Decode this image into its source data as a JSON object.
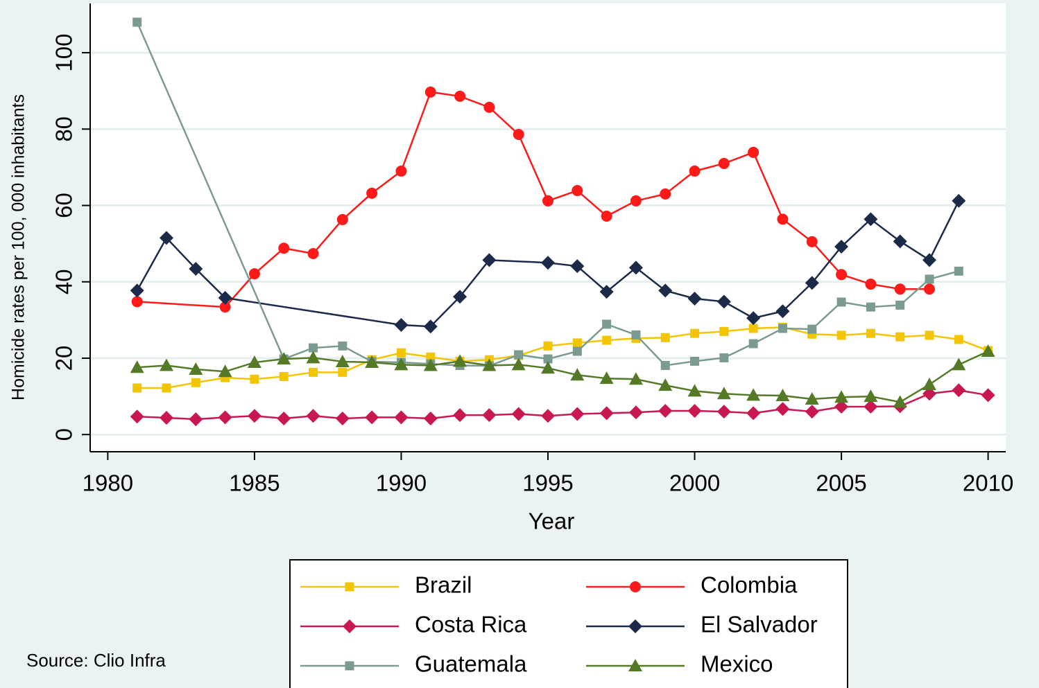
{
  "chart_data": {
    "type": "line",
    "y_label": "Homicide rates per 100, 000 inhabitants",
    "x_label": "Year",
    "source": "Source: Clio Infra",
    "xlim": [
      1979.4,
      2010.6
    ],
    "ylim": [
      -4.5,
      112.9
    ],
    "xticks": [
      1980,
      1985,
      1990,
      1995,
      2000,
      2005,
      2010
    ],
    "yticks": [
      0,
      20,
      40,
      60,
      80,
      100
    ],
    "grid": true,
    "series": [
      {
        "name": "Brazil",
        "color": "#f2c500",
        "marker": "square",
        "x": [
          1981,
          1982,
          1983,
          1984,
          1985,
          1986,
          1987,
          1988,
          1989,
          1990,
          1991,
          1992,
          1993,
          1994,
          1995,
          1996,
          1997,
          1998,
          1999,
          2000,
          2001,
          2002,
          2003,
          2004,
          2005,
          2006,
          2007,
          2008,
          2009,
          2010
        ],
        "values": [
          12.2,
          12.2,
          13.6,
          14.9,
          14.5,
          15.2,
          16.3,
          16.3,
          19.6,
          21.4,
          20.3,
          19.2,
          19.6,
          20.7,
          23.2,
          24.0,
          24.7,
          25.2,
          25.4,
          26.5,
          27.0,
          27.8,
          28.1,
          26.3,
          26.0,
          26.5,
          25.6,
          26.0,
          24.9,
          22.0
        ]
      },
      {
        "name": "Colombia",
        "color": "#ff1a1a",
        "marker": "circle",
        "x": [
          1981,
          1984,
          1985,
          1986,
          1987,
          1988,
          1989,
          1990,
          1991,
          1992,
          1993,
          1994,
          1995,
          1996,
          1997,
          1998,
          1999,
          2000,
          2001,
          2002,
          2003,
          2004,
          2005,
          2006,
          2007,
          2008
        ],
        "values": [
          34.8,
          33.4,
          42.1,
          48.8,
          47.4,
          56.3,
          63.2,
          69.0,
          89.7,
          88.6,
          85.7,
          78.6,
          61.2,
          63.9,
          57.2,
          61.2,
          63.0,
          69.0,
          71.0,
          73.9,
          56.4,
          50.5,
          41.9,
          39.4,
          38.1,
          38.1
        ]
      },
      {
        "name": "Costa Rica",
        "color": "#c8184f",
        "marker": "diamond",
        "x": [
          1981,
          1982,
          1983,
          1984,
          1985,
          1986,
          1987,
          1988,
          1989,
          1990,
          1991,
          1992,
          1993,
          1994,
          1995,
          1996,
          1997,
          1998,
          1999,
          2000,
          2001,
          2002,
          2003,
          2004,
          2005,
          2006,
          2007,
          2008,
          2009,
          2010
        ],
        "values": [
          4.7,
          4.4,
          4.0,
          4.5,
          4.9,
          4.2,
          4.9,
          4.2,
          4.5,
          4.5,
          4.2,
          5.1,
          5.1,
          5.4,
          4.9,
          5.4,
          5.6,
          5.8,
          6.2,
          6.2,
          6.0,
          5.6,
          6.7,
          6.0,
          7.3,
          7.3,
          7.4,
          10.7,
          11.6,
          10.3
        ]
      },
      {
        "name": "El Salvador",
        "color": "#1c2a4a",
        "marker": "diamond",
        "x": [
          1981,
          1982,
          1983,
          1984,
          1990,
          1991,
          1992,
          1993,
          1995,
          1996,
          1997,
          1998,
          1999,
          2000,
          2001,
          2002,
          2003,
          2004,
          2005,
          2006,
          2007,
          2008,
          2009
        ],
        "values": [
          37.7,
          51.5,
          43.4,
          35.8,
          28.7,
          28.3,
          36.1,
          45.7,
          45.0,
          44.1,
          37.4,
          43.7,
          37.7,
          35.6,
          34.8,
          30.5,
          32.3,
          39.7,
          49.2,
          56.4,
          50.6,
          45.7,
          61.2
        ]
      },
      {
        "name": "Guatemala",
        "color": "#7a9a92",
        "marker": "square",
        "x": [
          1981,
          1986,
          1987,
          1988,
          1989,
          1990,
          1991,
          1992,
          1993,
          1994,
          1995,
          1996,
          1997,
          1998,
          1999,
          2000,
          2001,
          2002,
          2003,
          2004,
          2005,
          2006,
          2007,
          2008,
          2009
        ],
        "values": [
          108.0,
          19.8,
          22.7,
          23.2,
          19.1,
          18.9,
          18.5,
          18.1,
          18.0,
          20.9,
          19.8,
          21.8,
          28.9,
          26.1,
          18.1,
          19.2,
          20.1,
          23.8,
          27.8,
          27.6,
          34.7,
          33.4,
          33.9,
          40.7,
          42.8
        ]
      },
      {
        "name": "Mexico",
        "color": "#557a27",
        "marker": "triangle",
        "x": [
          1981,
          1982,
          1983,
          1984,
          1985,
          1986,
          1987,
          1988,
          1989,
          1990,
          1991,
          1992,
          1993,
          1994,
          1995,
          1996,
          1997,
          1998,
          1999,
          2000,
          2001,
          2002,
          2003,
          2004,
          2005,
          2006,
          2007,
          2008,
          2009,
          2010
        ],
        "values": [
          17.6,
          18.1,
          17.1,
          16.5,
          18.9,
          19.8,
          20.1,
          19.1,
          18.9,
          18.3,
          18.1,
          19.2,
          18.1,
          18.3,
          17.4,
          15.6,
          14.7,
          14.5,
          12.9,
          11.4,
          10.7,
          10.3,
          10.2,
          9.3,
          9.8,
          10.0,
          8.5,
          13.1,
          18.3,
          21.8
        ]
      }
    ]
  }
}
